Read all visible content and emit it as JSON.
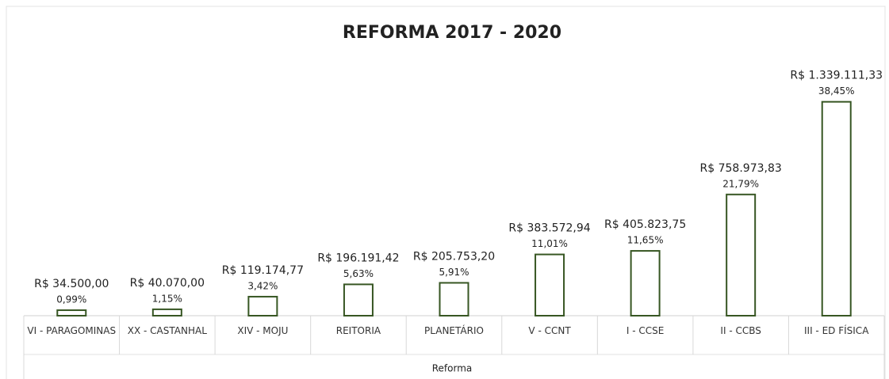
{
  "chart_data": {
    "type": "bar",
    "title": "REFORMA 2017 - 2020",
    "x_label": "Reforma",
    "categories": [
      "VI - PARAGOMINAS",
      "XX - CASTANHAL",
      "XIV - MOJU",
      "REITORIA",
      "PLANETÁRIO",
      "V - CCNT",
      "I - CCSE",
      "II - CCBS",
      "III - ED FÍSICA"
    ],
    "values": [
      34500,
      40070,
      119174.77,
      196191.42,
      205753.2,
      383572.94,
      405823.75,
      758973.83,
      1339111.33
    ],
    "value_labels": [
      "R$ 34.500,00",
      "R$ 40.070,00",
      "R$ 119.174,77",
      "R$ 196.191,42",
      "R$ 205.753,20",
      "R$ 383.572,94",
      "R$ 405.823,75",
      "R$ 758.973,83",
      "R$ 1.339.111,33"
    ],
    "percentage_labels": [
      "0,99%",
      "1,15%",
      "3,42%",
      "5,63%",
      "5,91%",
      "11,01%",
      "11,65%",
      "21,79%",
      "38,45%"
    ],
    "color": "#375623",
    "ylim": [
      0,
      1600000
    ]
  }
}
